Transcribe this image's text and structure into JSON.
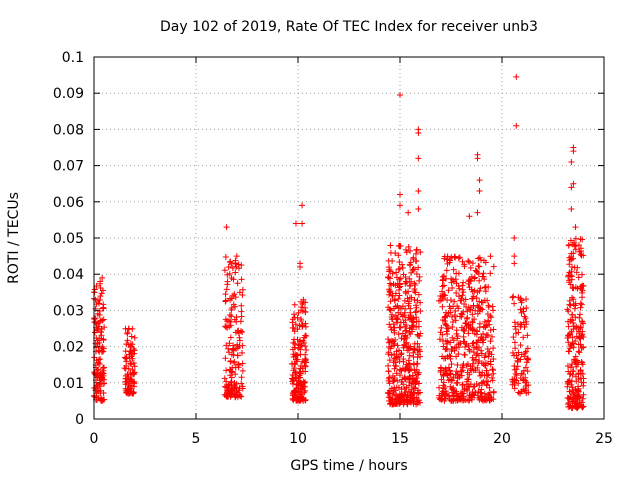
{
  "chart_data": {
    "type": "scatter",
    "title": "Day 102 of 2019, Rate Of TEC Index for receiver unb3",
    "xlabel": "GPS time / hours",
    "ylabel": "ROTI / TECUs",
    "xlim": [
      0,
      25
    ],
    "ylim": [
      0,
      0.1
    ],
    "x_ticks": [
      "0",
      "5",
      "10",
      "15",
      "20",
      "25"
    ],
    "y_ticks": [
      "0",
      "0.01",
      "0.02",
      "0.03",
      "0.04",
      "0.05",
      "0.06",
      "0.07",
      "0.08",
      "0.09",
      "0.1"
    ],
    "x_tick_values": [
      0,
      5,
      10,
      15,
      20,
      25
    ],
    "y_tick_values": [
      0,
      0.01,
      0.02,
      0.03,
      0.04,
      0.05,
      0.06,
      0.07,
      0.08,
      0.09,
      0.1
    ],
    "grid": true,
    "marker": "+",
    "marker_color": "#ff0000",
    "clusters": [
      {
        "x_range": [
          0.0,
          0.5
        ],
        "y_range": [
          0.005,
          0.038
        ],
        "count": 140
      },
      {
        "x_range": [
          1.5,
          2.0
        ],
        "y_range": [
          0.007,
          0.025
        ],
        "count": 90
      },
      {
        "x_range": [
          6.4,
          7.3
        ],
        "y_range": [
          0.006,
          0.045
        ],
        "count": 160
      },
      {
        "x_range": [
          9.7,
          10.4
        ],
        "y_range": [
          0.005,
          0.033
        ],
        "count": 170
      },
      {
        "x_range": [
          14.4,
          16.0
        ],
        "y_range": [
          0.004,
          0.048
        ],
        "count": 420
      },
      {
        "x_range": [
          16.9,
          19.6
        ],
        "y_range": [
          0.005,
          0.045
        ],
        "count": 520
      },
      {
        "x_range": [
          20.5,
          21.3
        ],
        "y_range": [
          0.007,
          0.035
        ],
        "count": 90
      },
      {
        "x_range": [
          23.2,
          24.0
        ],
        "y_range": [
          0.003,
          0.05
        ],
        "count": 230
      }
    ],
    "notable_points": [
      {
        "x": 0.4,
        "y": 0.039
      },
      {
        "x": 0.3,
        "y": 0.038
      },
      {
        "x": 1.7,
        "y": 0.025
      },
      {
        "x": 6.5,
        "y": 0.053
      },
      {
        "x": 7.0,
        "y": 0.045
      },
      {
        "x": 6.6,
        "y": 0.042
      },
      {
        "x": 9.9,
        "y": 0.054
      },
      {
        "x": 10.2,
        "y": 0.059
      },
      {
        "x": 10.2,
        "y": 0.054
      },
      {
        "x": 10.1,
        "y": 0.043
      },
      {
        "x": 10.1,
        "y": 0.042
      },
      {
        "x": 15.0,
        "y": 0.0895
      },
      {
        "x": 15.9,
        "y": 0.08
      },
      {
        "x": 15.9,
        "y": 0.079
      },
      {
        "x": 15.9,
        "y": 0.072
      },
      {
        "x": 15.9,
        "y": 0.063
      },
      {
        "x": 15.9,
        "y": 0.058
      },
      {
        "x": 15.0,
        "y": 0.062
      },
      {
        "x": 15.0,
        "y": 0.059
      },
      {
        "x": 15.4,
        "y": 0.057
      },
      {
        "x": 18.8,
        "y": 0.073
      },
      {
        "x": 18.8,
        "y": 0.072
      },
      {
        "x": 18.9,
        "y": 0.066
      },
      {
        "x": 18.9,
        "y": 0.063
      },
      {
        "x": 18.8,
        "y": 0.057
      },
      {
        "x": 18.4,
        "y": 0.056
      },
      {
        "x": 20.7,
        "y": 0.0945
      },
      {
        "x": 20.7,
        "y": 0.081
      },
      {
        "x": 20.6,
        "y": 0.05
      },
      {
        "x": 20.6,
        "y": 0.045
      },
      {
        "x": 20.6,
        "y": 0.043
      },
      {
        "x": 20.6,
        "y": 0.011
      },
      {
        "x": 20.6,
        "y": 0.01
      },
      {
        "x": 23.5,
        "y": 0.075
      },
      {
        "x": 23.5,
        "y": 0.074
      },
      {
        "x": 23.4,
        "y": 0.071
      },
      {
        "x": 23.5,
        "y": 0.065
      },
      {
        "x": 23.4,
        "y": 0.064
      },
      {
        "x": 23.4,
        "y": 0.058
      },
      {
        "x": 23.6,
        "y": 0.053
      }
    ]
  }
}
